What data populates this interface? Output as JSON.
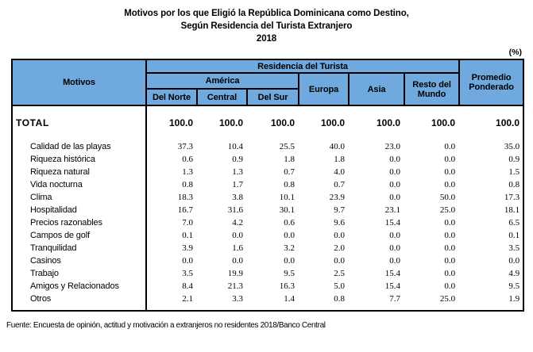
{
  "title": {
    "line1": "Motivos por los que Eligió la República Dominicana como Destino,",
    "line2": "Según Residencia del Turista Extranjero",
    "line3": "2018"
  },
  "percent_label": "(%)",
  "colors": {
    "header_bg": "#6FA9DD",
    "border": "#000000"
  },
  "table": {
    "header": {
      "motivos": "Motivos",
      "residencia": "Residencia del Turista",
      "america": "América",
      "promedio": "Promedio Ponderado",
      "del_norte": "Del Norte",
      "central": "Central",
      "del_sur": "Del Sur",
      "europa": "Europa",
      "asia": "Asia",
      "resto_del_mundo": "Resto del Mundo"
    },
    "total_row": {
      "label": "TOTAL",
      "values": [
        "100.0",
        "100.0",
        "100.0",
        "100.0",
        "100.0",
        "100.0",
        "100.0"
      ]
    },
    "rows": [
      {
        "label": "Calidad de las playas",
        "values": [
          "37.3",
          "10.4",
          "25.5",
          "40.0",
          "23.0",
          "0.0",
          "35.0"
        ]
      },
      {
        "label": "Riqueza histórica",
        "values": [
          "0.6",
          "0.9",
          "1.8",
          "1.8",
          "0.0",
          "0.0",
          "0.9"
        ]
      },
      {
        "label": "Riqueza natural",
        "values": [
          "1.3",
          "1.3",
          "0.7",
          "4.0",
          "0.0",
          "0.0",
          "1.5"
        ]
      },
      {
        "label": "Vida nocturna",
        "values": [
          "0.8",
          "1.7",
          "0.8",
          "0.7",
          "0.0",
          "0.0",
          "0.8"
        ]
      },
      {
        "label": "Clima",
        "values": [
          "18.3",
          "3.8",
          "10.1",
          "23.9",
          "0.0",
          "50.0",
          "17.3"
        ]
      },
      {
        "label": "Hospitalidad",
        "values": [
          "16.7",
          "31.6",
          "30.1",
          "9.7",
          "23.1",
          "25.0",
          "18.1"
        ]
      },
      {
        "label": "Precios razonables",
        "values": [
          "7.0",
          "4.2",
          "0.6",
          "9.6",
          "15.4",
          "0.0",
          "6.5"
        ]
      },
      {
        "label": "Campos de golf",
        "values": [
          "0.1",
          "0.0",
          "0.0",
          "0.0",
          "0.0",
          "0.0",
          "0.1"
        ]
      },
      {
        "label": "Tranquilidad",
        "values": [
          "3.9",
          "1.6",
          "3.2",
          "2.0",
          "0.0",
          "0.0",
          "3.5"
        ]
      },
      {
        "label": "Casinos",
        "values": [
          "0.0",
          "0.0",
          "0.0",
          "0.0",
          "0.0",
          "0.0",
          "0.0"
        ]
      },
      {
        "label": "Trabajo",
        "values": [
          "3.5",
          "19.9",
          "9.5",
          "2.5",
          "15.4",
          "0.0",
          "4.9"
        ]
      },
      {
        "label": "Amigos y Relacionados",
        "values": [
          "8.4",
          "21.3",
          "16.3",
          "5.0",
          "15.4",
          "0.0",
          "9.5"
        ]
      },
      {
        "label": "Otros",
        "values": [
          "2.1",
          "3.3",
          "1.4",
          "0.8",
          "7.7",
          "25.0",
          "1.9"
        ]
      }
    ]
  },
  "footer": {
    "source": "Fuente: Encuesta de opinión, actitud y motivación a extranjeros no residentes 2018/Banco Central"
  }
}
